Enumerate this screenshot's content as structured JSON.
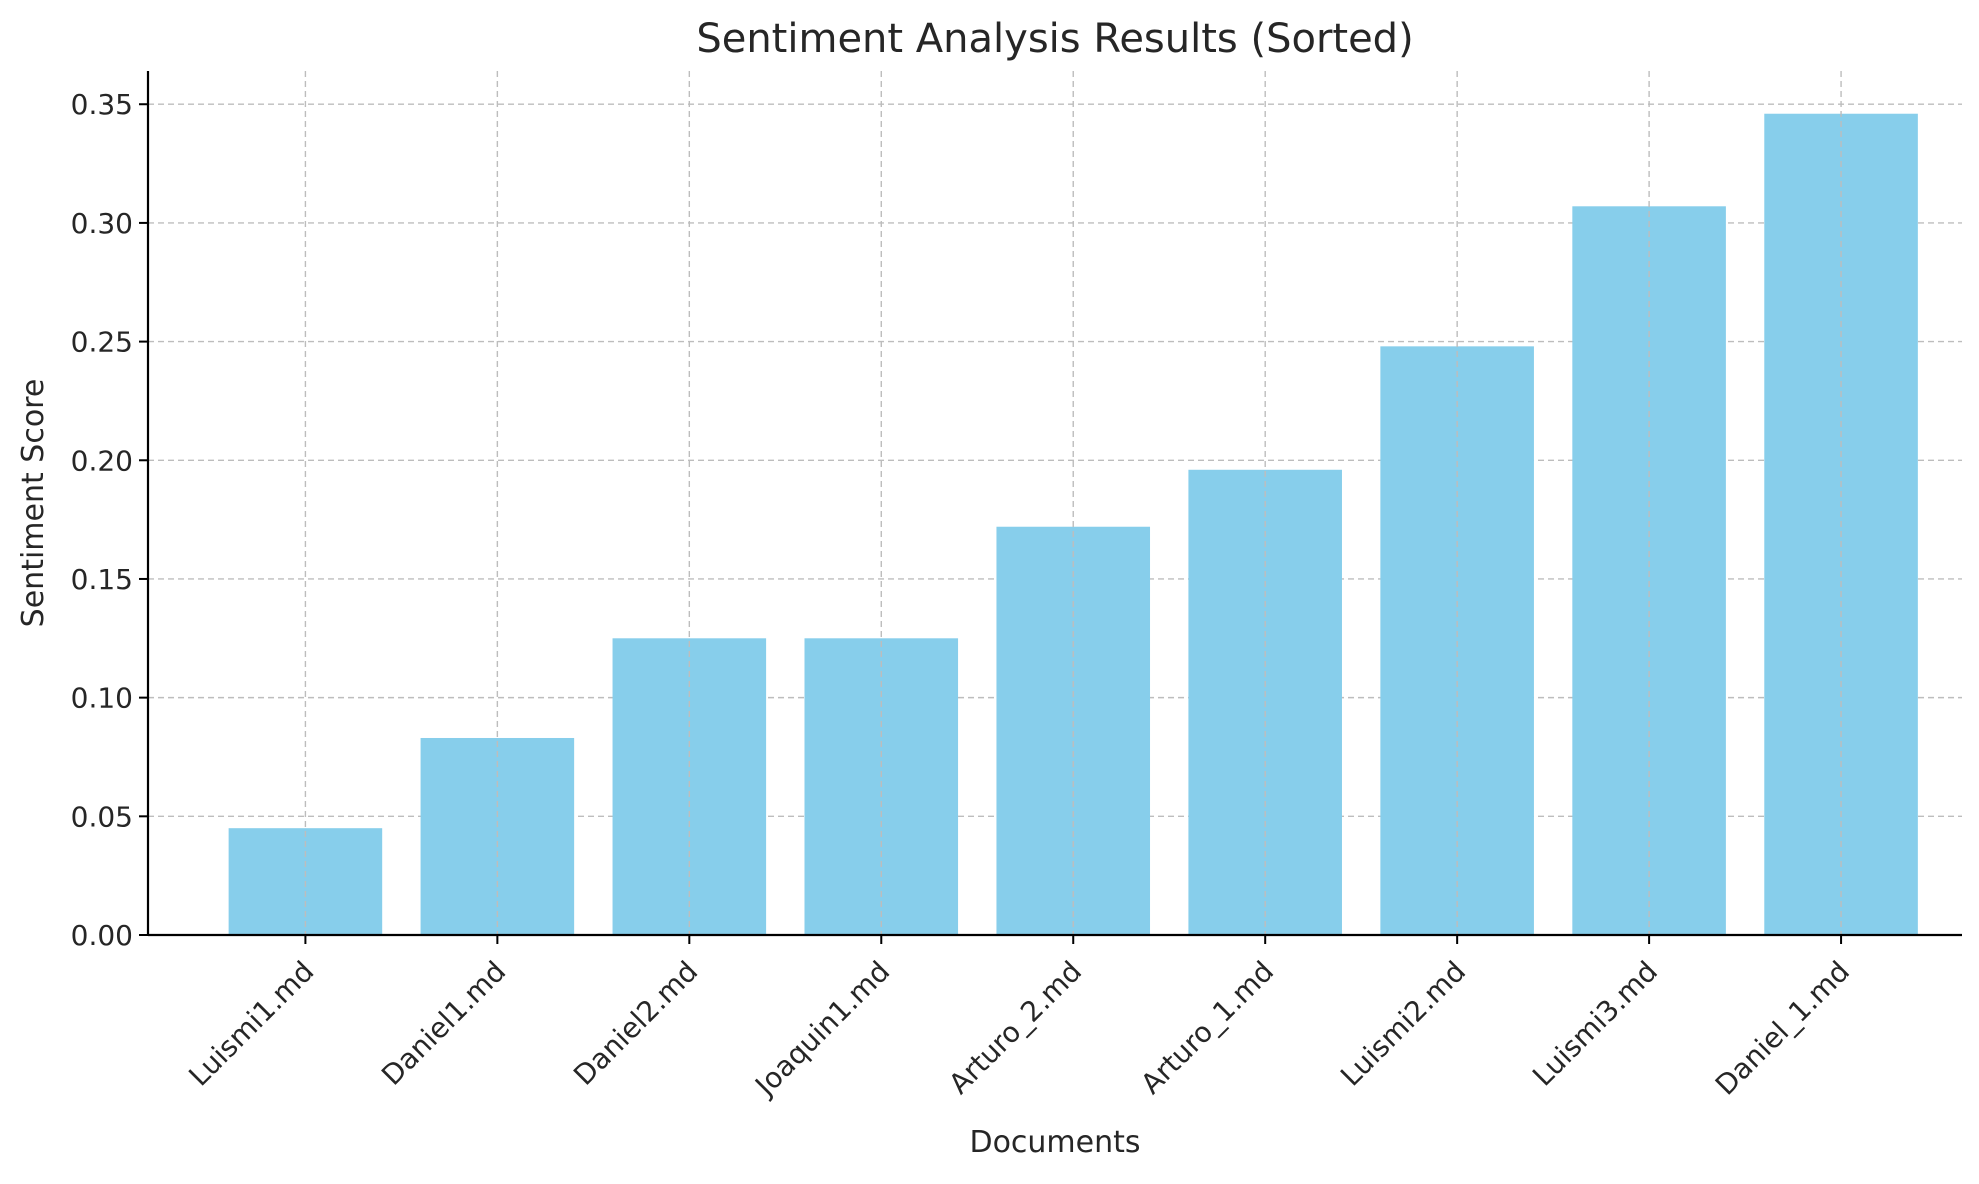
{
  "chart_data": {
    "type": "bar",
    "title": "Sentiment Analysis Results (Sorted)",
    "xlabel": "Documents",
    "ylabel": "Sentiment Score",
    "categories": [
      "Luismi1.md",
      "Daniel1.md",
      "Daniel2.md",
      "Joaquin1.md",
      "Arturo_2.md",
      "Arturo_1.md",
      "Luismi2.md",
      "Luismi3.md",
      "Daniel_1.md"
    ],
    "values": [
      0.045,
      0.083,
      0.125,
      0.125,
      0.172,
      0.196,
      0.248,
      0.307,
      0.346
    ],
    "ylim": [
      0,
      0.364
    ],
    "yticks": [
      "0.00",
      "0.05",
      "0.10",
      "0.15",
      "0.20",
      "0.25",
      "0.30",
      "0.35"
    ],
    "grid": true,
    "bar_color": "#87ceeb"
  }
}
